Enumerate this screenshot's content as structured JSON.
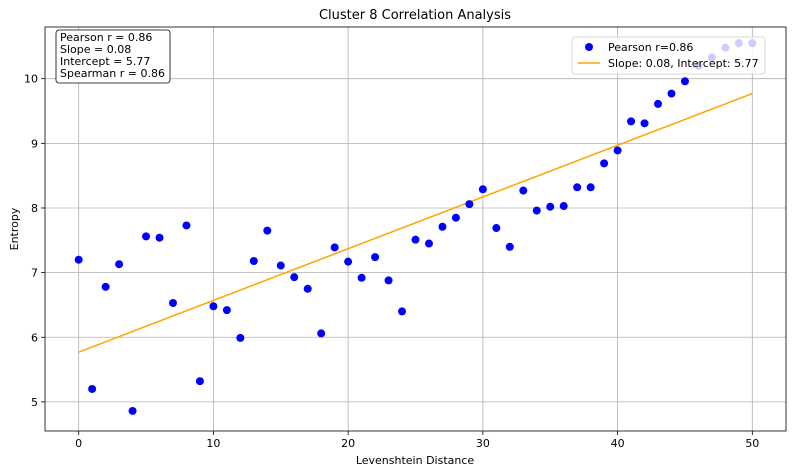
{
  "chart_data": {
    "type": "scatter",
    "title": "Cluster 8 Correlation Analysis",
    "xlabel": "Levenshtein Distance",
    "ylabel": "Entropy",
    "xlim": [
      -2.5,
      52.5
    ],
    "ylim": [
      4.55,
      10.8
    ],
    "xticks": [
      0,
      10,
      20,
      30,
      40,
      50
    ],
    "yticks": [
      5,
      6,
      7,
      8,
      9,
      10
    ],
    "grid": true,
    "legend_position": "top-right",
    "colors": {
      "points": "#0000ff",
      "fit_line": "#ffa500"
    },
    "series": [
      {
        "name": "Pearson r=0.86",
        "type": "scatter",
        "x": [
          0,
          1,
          2,
          3,
          4,
          5,
          6,
          7,
          8,
          9,
          10,
          11,
          12,
          13,
          14,
          15,
          16,
          17,
          18,
          19,
          20,
          21,
          22,
          23,
          24,
          25,
          26,
          27,
          28,
          29,
          30,
          31,
          32,
          33,
          34,
          35,
          36,
          37,
          38,
          39,
          40,
          41,
          42,
          43,
          44,
          45,
          46,
          47,
          48,
          49,
          50
        ],
        "y": [
          7.2,
          5.2,
          6.78,
          7.13,
          4.86,
          7.56,
          7.54,
          6.53,
          7.73,
          5.32,
          6.48,
          6.42,
          5.99,
          7.18,
          7.65,
          7.11,
          6.93,
          6.75,
          6.06,
          7.39,
          7.17,
          6.92,
          7.24,
          6.88,
          6.4,
          7.51,
          7.45,
          7.71,
          7.85,
          8.06,
          8.29,
          7.69,
          7.4,
          8.27,
          7.96,
          8.02,
          8.03,
          8.32,
          8.32,
          8.69,
          8.89,
          9.34,
          9.31,
          9.61,
          9.77,
          9.96,
          10.2,
          10.33,
          10.48,
          10.55,
          10.55
        ]
      },
      {
        "name": "Slope: 0.08, Intercept: 5.77",
        "type": "line",
        "slope": 0.08,
        "intercept": 5.77,
        "x_range": [
          0,
          50
        ]
      }
    ],
    "stats_box": [
      "Pearson r = 0.86",
      "Slope = 0.08",
      "Intercept = 5.77",
      "Spearman r = 0.86"
    ]
  }
}
